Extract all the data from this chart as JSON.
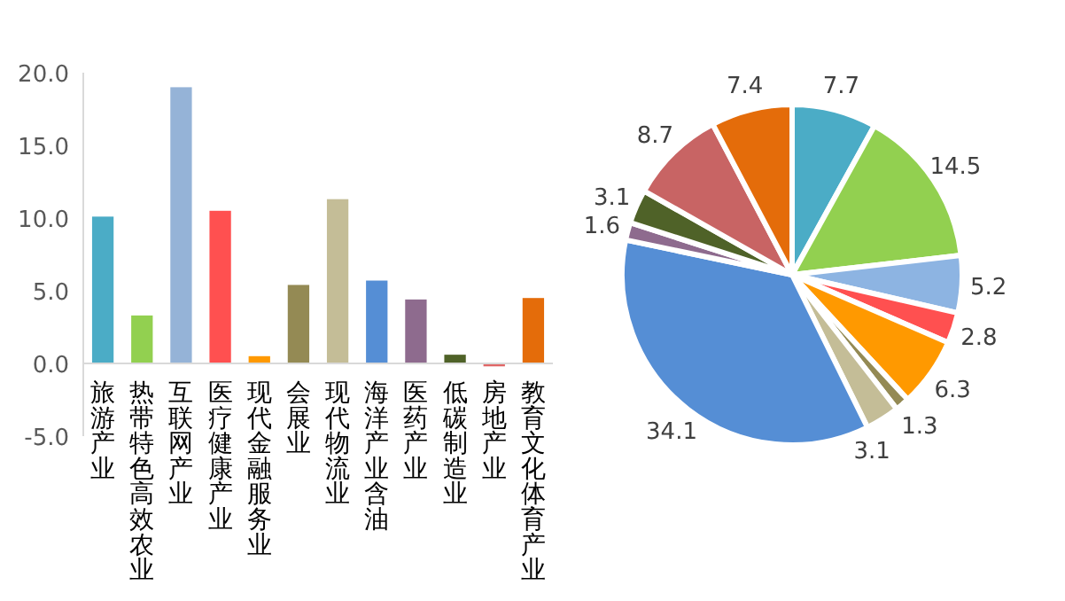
{
  "chart_data": [
    {
      "type": "bar",
      "categories": [
        "旅游产业",
        "热带特色高效农业",
        "互联网产业",
        "医疗健康产业",
        "现代金融服务业",
        "会展业",
        "现代物流业",
        "海洋产业含油",
        "医药产业",
        "低碳制造业",
        "房地产业",
        "教育文化体育产业"
      ],
      "values": [
        10.1,
        3.3,
        19.0,
        10.5,
        0.5,
        5.4,
        11.3,
        5.7,
        4.4,
        0.6,
        -0.2,
        4.5
      ],
      "colors": [
        "#4bacc6",
        "#92d050",
        "#95b3d7",
        "#ff5050",
        "#ff9900",
        "#948a54",
        "#c4bd97",
        "#558ed5",
        "#8e6b8e",
        "#4f6228",
        "#e06666",
        "#e46c0a"
      ],
      "ylim": [
        -5,
        20
      ],
      "yticks": [
        {
          "value": -5,
          "label": "-5.0"
        },
        {
          "value": 0,
          "label": "0.0"
        },
        {
          "value": 5,
          "label": "5.0"
        },
        {
          "value": 10,
          "label": "10.0"
        },
        {
          "value": 15,
          "label": "15.0"
        },
        {
          "value": 20,
          "label": "20.0"
        }
      ]
    },
    {
      "type": "pie",
      "categories": [
        null,
        null,
        null,
        null,
        null,
        null,
        null,
        null,
        null,
        null,
        null,
        null
      ],
      "values": [
        7.7,
        14.5,
        5.2,
        2.8,
        6.3,
        1.3,
        3.1,
        34.1,
        1.6,
        3.1,
        8.7,
        7.4
      ],
      "colors": [
        "#4bacc6",
        "#92d050",
        "#8db4e2",
        "#ff5050",
        "#ff9900",
        "#948a54",
        "#c4bd97",
        "#558ed5",
        "#8e6b8e",
        "#4f6228",
        "#c86464",
        "#e46c0a"
      ],
      "data_labels": true
    }
  ]
}
